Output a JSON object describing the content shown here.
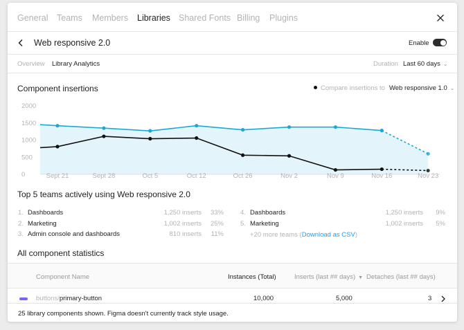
{
  "tabs": [
    "General",
    "Teams",
    "Members",
    "Libraries",
    "Shared Fonts",
    "Billing",
    "Plugins"
  ],
  "active_tab": "Libraries",
  "header": {
    "library_name": "Web responsive 2.0",
    "enable_label": "Enable",
    "enabled": true
  },
  "subtabs": [
    "Overview",
    "Library Analytics"
  ],
  "active_subtab": "Library Analytics",
  "duration": {
    "label": "Duration",
    "value": "Last 60 days"
  },
  "insertions": {
    "title": "Component insertions",
    "compare_label": "Compare insertions to",
    "compare_value": "Web responsive 1.0"
  },
  "chart_data": {
    "type": "line",
    "title": "Component insertions",
    "categories": [
      "Sept 21",
      "Sept 28",
      "Oct 5",
      "Oct 12",
      "Oct 26",
      "Nov 2",
      "Nov 9",
      "Nov 16",
      "Nov 23"
    ],
    "yticks": [
      0,
      500,
      1000,
      1500,
      2000
    ],
    "ylim": [
      0,
      2000
    ],
    "series": [
      {
        "name": "Web responsive 2.0",
        "color": "#1ba8d5",
        "start": 1450,
        "values": [
          1420,
          1350,
          1270,
          1420,
          1300,
          1380,
          1380,
          1280,
          600
        ],
        "projected_last": true,
        "filled": true
      },
      {
        "name": "Web responsive 1.0",
        "color": "#111111",
        "start": 780,
        "values": [
          810,
          1110,
          1040,
          1060,
          560,
          540,
          130,
          150,
          110
        ],
        "projected_last": true,
        "filled": false
      }
    ],
    "legend": "top-right",
    "grid": false
  },
  "top_teams": {
    "title": "Top 5 teams actively using Web responsive 2.0",
    "items": [
      {
        "rank": "1.",
        "name": "Dashboards",
        "inserts": "1,250 inserts",
        "pct": "33%"
      },
      {
        "rank": "2.",
        "name": "Marketing",
        "inserts": "1,002 inserts",
        "pct": "25%"
      },
      {
        "rank": "3.",
        "name": "Admin console and dashboards",
        "inserts": "810 inserts",
        "pct": "11%"
      },
      {
        "rank": "4.",
        "name": "Dashboards",
        "inserts": "1,250 inserts",
        "pct": "9%"
      },
      {
        "rank": "5.",
        "name": "Marketing",
        "inserts": "1,002 inserts",
        "pct": "5%"
      }
    ],
    "more_text": "+20 more teams (",
    "download_link": "Download as CSV",
    "more_close": ")"
  },
  "stats": {
    "title": "All component statistics",
    "columns": [
      "Component Name",
      "Instances (Total)",
      "Inserts (last ## days)",
      "Detaches (last ## days)"
    ],
    "rows": [
      {
        "path": "buttons/",
        "name": "primary-button",
        "instances": "10,000",
        "inserts": "5,000",
        "detaches": "3"
      }
    ],
    "footer": "25 library components shown. Figma doesn't currently track style usage."
  }
}
